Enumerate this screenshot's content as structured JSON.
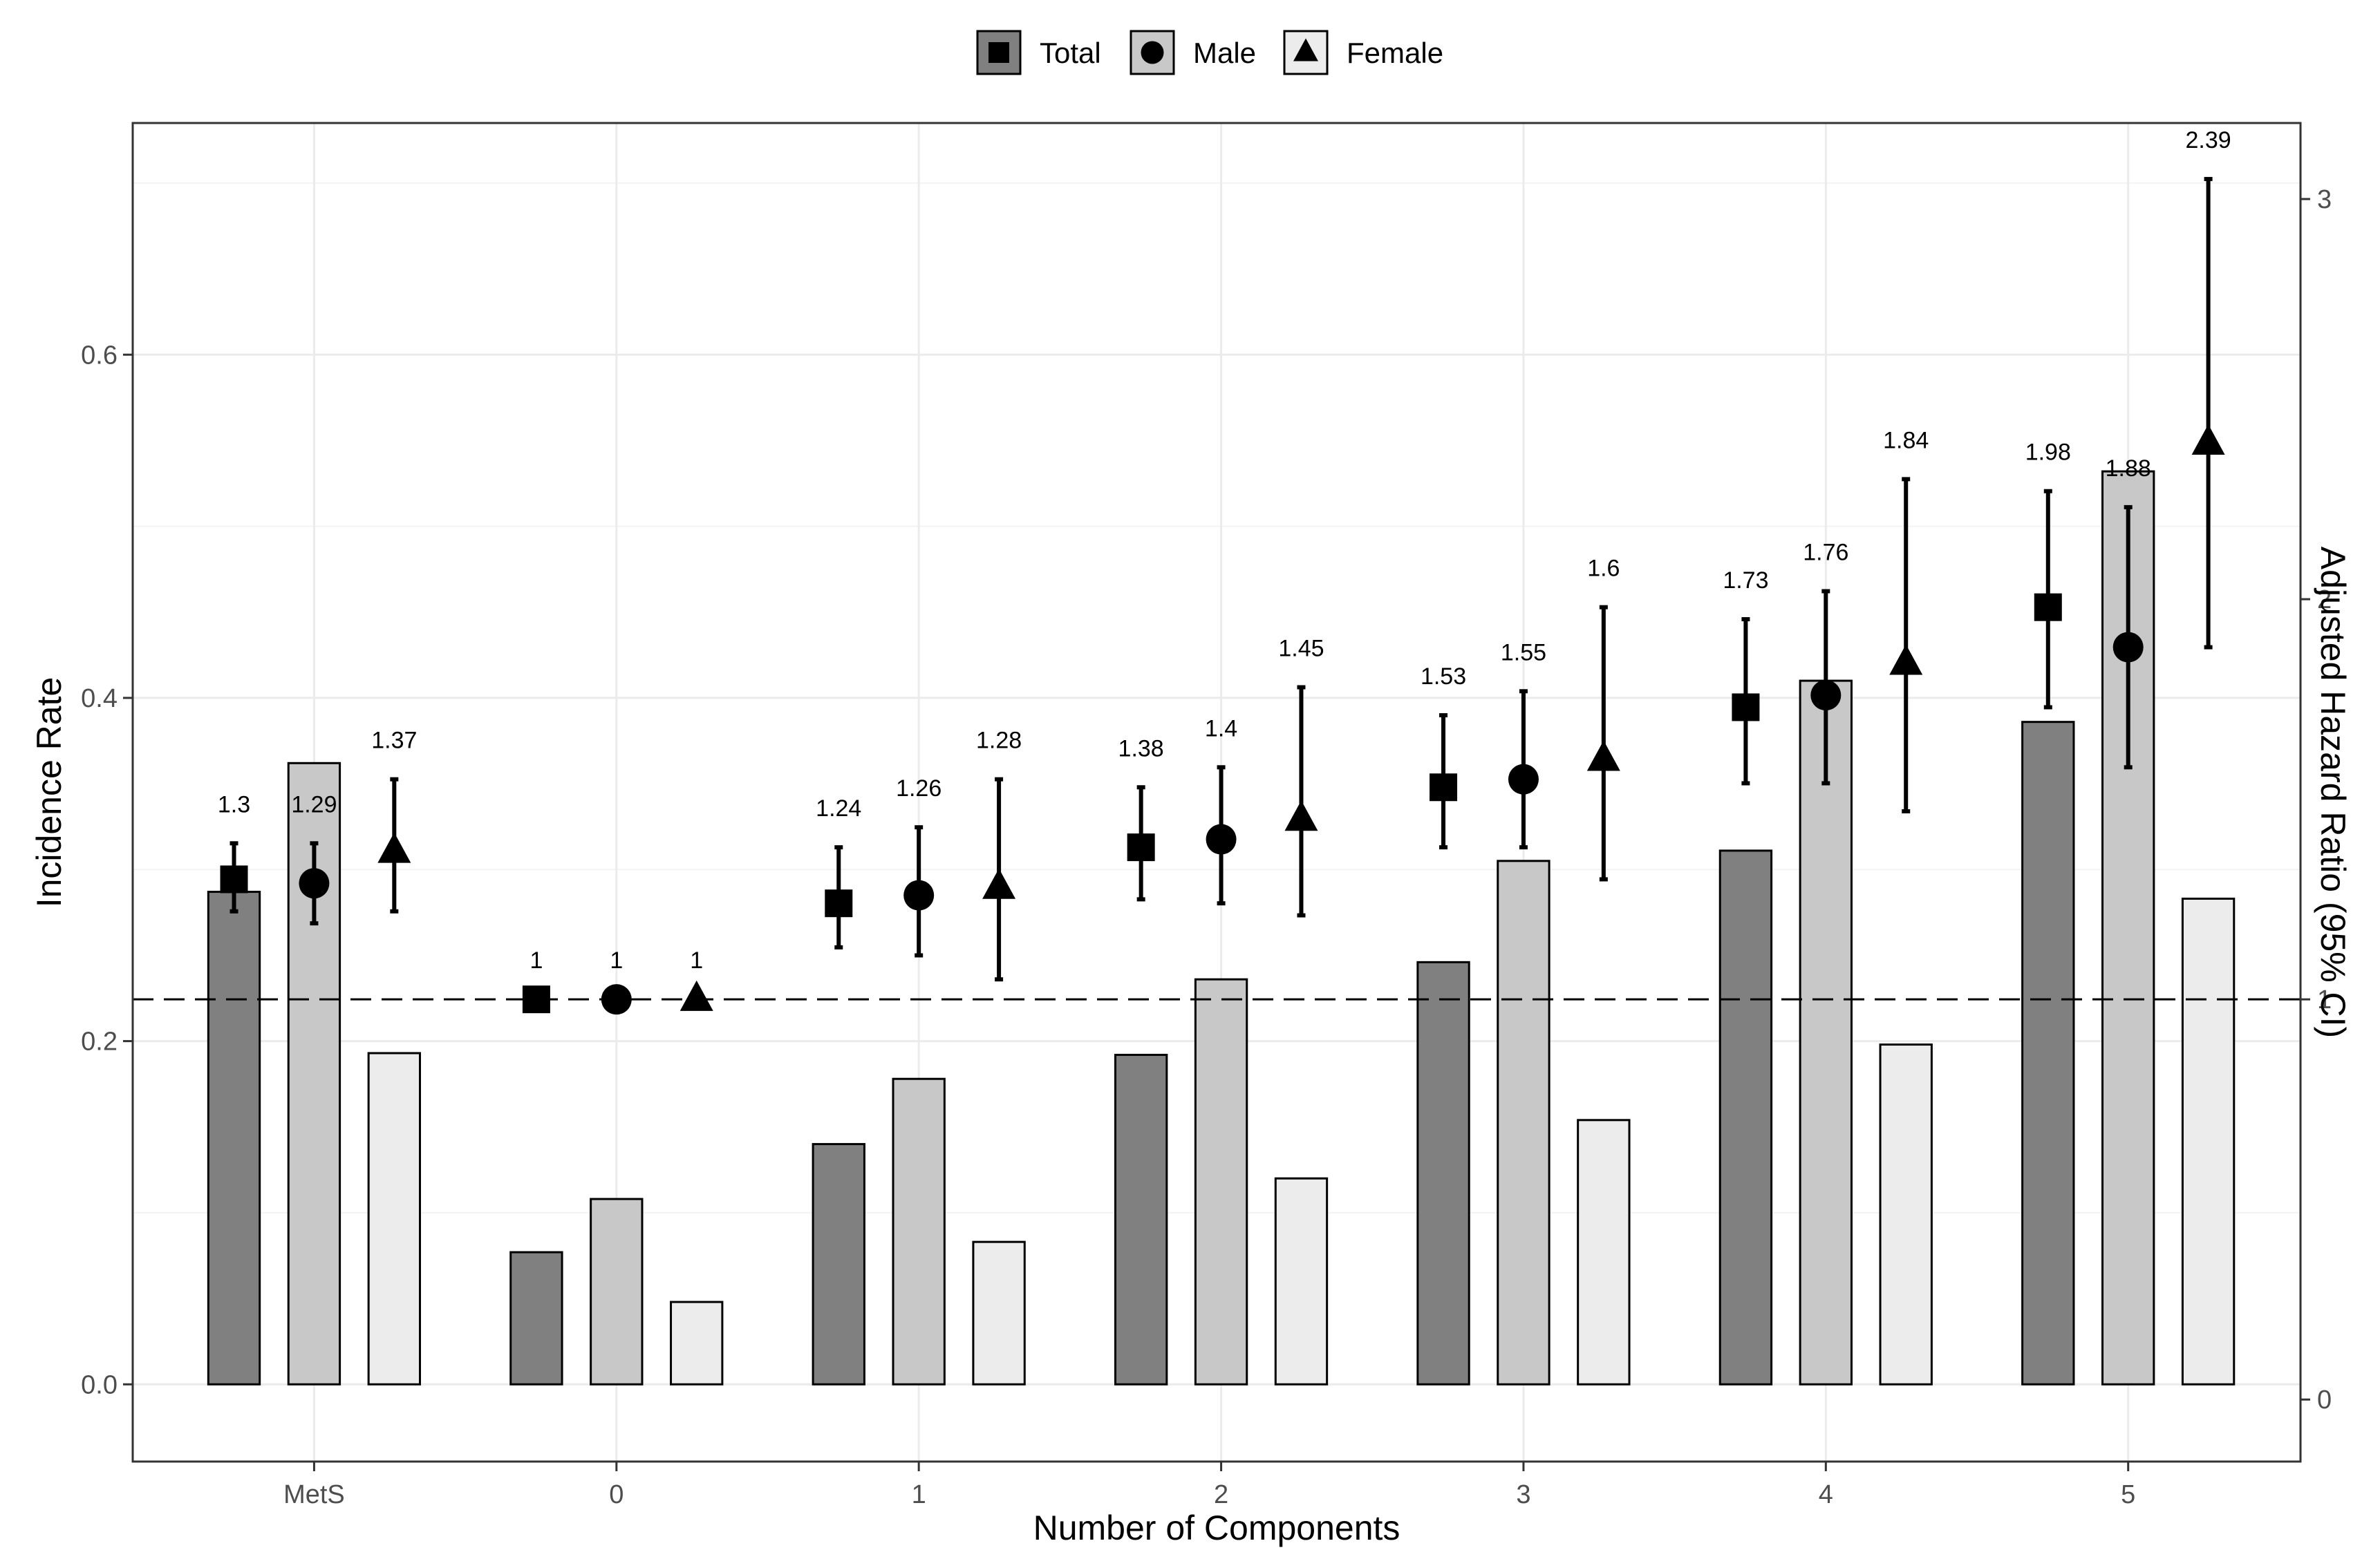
{
  "chart_data": {
    "type": "bar",
    "xlabel": "Number of Components",
    "ylabel": "Incidence Rate",
    "y2label": "Adjusted Hazard Ratio (95% CI)",
    "categories": [
      "MetS",
      "0",
      "1",
      "2",
      "3",
      "4",
      "5"
    ],
    "ylim": [
      -0.045,
      0.735
    ],
    "y2lim": [
      -0.155,
      3.19
    ],
    "yticks": [
      "0.0",
      "0.2",
      "0.4",
      "0.6"
    ],
    "y2ticks": [
      "0",
      "1",
      "2",
      "3"
    ],
    "reference_line": {
      "axis": "right",
      "value": 1,
      "style": "dashed"
    },
    "grid": true,
    "legend": {
      "position": "top",
      "entries": [
        {
          "name": "Total",
          "shape": "square",
          "bar_color": "#808080"
        },
        {
          "name": "Male",
          "shape": "circle",
          "bar_color": "#c8c8c8"
        },
        {
          "name": "Female",
          "shape": "triangle",
          "bar_color": "#ececec"
        }
      ]
    },
    "series": [
      {
        "name": "Total",
        "incidence": [
          0.287,
          0.077,
          0.14,
          0.192,
          0.246,
          0.311,
          0.386
        ],
        "hr": [
          1.3,
          1.0,
          1.24,
          1.38,
          1.53,
          1.73,
          1.98
        ],
        "hr_labels": [
          "1.3",
          "1",
          "1.24",
          "1.38",
          "1.53",
          "1.73",
          "1.98"
        ],
        "ci_low": [
          1.22,
          1.0,
          1.13,
          1.25,
          1.38,
          1.54,
          1.73
        ],
        "ci_high": [
          1.39,
          1.0,
          1.38,
          1.53,
          1.71,
          1.95,
          2.27
        ]
      },
      {
        "name": "Male",
        "incidence": [
          0.362,
          0.108,
          0.178,
          0.236,
          0.305,
          0.41,
          0.532
        ],
        "hr": [
          1.29,
          1.0,
          1.26,
          1.4,
          1.55,
          1.76,
          1.88
        ],
        "hr_labels": [
          "1.29",
          "1",
          "1.26",
          "1.4",
          "1.55",
          "1.76",
          "1.88"
        ],
        "ci_low": [
          1.19,
          1.0,
          1.11,
          1.24,
          1.38,
          1.54,
          1.58
        ],
        "ci_high": [
          1.39,
          1.0,
          1.43,
          1.58,
          1.77,
          2.02,
          2.23
        ]
      },
      {
        "name": "Female",
        "incidence": [
          0.193,
          0.048,
          0.083,
          0.12,
          0.154,
          0.198,
          0.283
        ],
        "hr": [
          1.37,
          1.0,
          1.28,
          1.45,
          1.6,
          1.84,
          2.39
        ],
        "hr_labels": [
          "1.37",
          "1",
          "1.28",
          "1.45",
          "1.6",
          "1.84",
          "2.39"
        ],
        "ci_low": [
          1.22,
          1.0,
          1.05,
          1.21,
          1.3,
          1.47,
          1.88
        ],
        "ci_high": [
          1.55,
          1.0,
          1.55,
          1.78,
          1.98,
          2.3,
          3.05
        ]
      }
    ]
  }
}
